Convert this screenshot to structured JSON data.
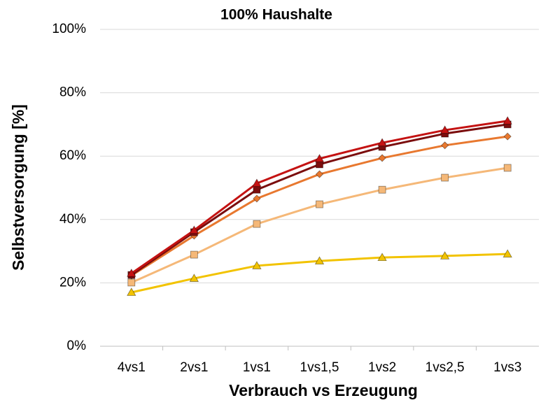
{
  "chart_data": {
    "type": "line",
    "title": "100% Haushalte",
    "x_label": "Verbrauch vs Erzeugung",
    "y_label": "Selbstversorgung [%]",
    "categories": [
      "4vs1",
      "2vs1",
      "1vs1",
      "1vs1,5",
      "1vs2",
      "1vs2,5",
      "1vs3"
    ],
    "ylim": [
      0,
      100
    ],
    "yticks": [
      {
        "value": 0,
        "label": "0%"
      },
      {
        "value": 20,
        "label": "20%"
      },
      {
        "value": 40,
        "label": "40%"
      },
      {
        "value": 60,
        "label": "60%"
      },
      {
        "value": 80,
        "label": "80%"
      },
      {
        "value": 100,
        "label": "100%"
      }
    ],
    "grid": true,
    "series": [
      {
        "color": "#f2c300",
        "marker": "triangle",
        "values": [
          17,
          21.4,
          25.4,
          26.9,
          28,
          28.5,
          29.1
        ]
      },
      {
        "color": "#f5b878",
        "marker": "square",
        "values": [
          20.1,
          28.9,
          38.6,
          44.8,
          49.4,
          53.2,
          56.3
        ]
      },
      {
        "color": "#e8782f",
        "marker": "diamond",
        "values": [
          22.3,
          34.9,
          46.6,
          54.3,
          59.4,
          63.4,
          66.2
        ]
      },
      {
        "color": "#7b0d0d",
        "marker": "square",
        "values": [
          22.5,
          36,
          49.4,
          57.4,
          62.9,
          67.1,
          70
        ]
      },
      {
        "color": "#c41212",
        "marker": "triangle",
        "values": [
          23,
          36.6,
          51.4,
          59.2,
          64.2,
          68.2,
          71.1
        ]
      }
    ]
  }
}
